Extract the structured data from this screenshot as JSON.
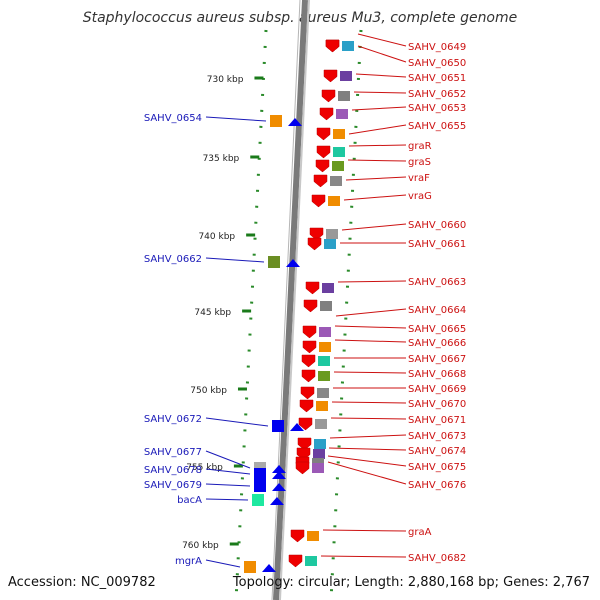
{
  "title": "Staphylococcus aureus subsp. aureus Mu3, complete genome",
  "footer": {
    "accession": "Accession: NC_009782",
    "stats": "Topology: circular; Length: 2,880,168 bp; Genes: 2,767"
  },
  "colors": {
    "backbone": "#808080",
    "tick": "#1a7a1a",
    "forward_label": "#1a1ab8",
    "reverse_label": "#cc1111",
    "forward_arrow": "#0000ee",
    "reverse_arrow": "#ee0000"
  },
  "scale_labels": [
    "730 kbp",
    "735 kbp",
    "740 kbp",
    "745 kbp",
    "750 kbp",
    "755 kbp",
    "760 kbp"
  ],
  "right_genes": [
    "SAHV_0649",
    "SAHV_0650",
    "SAHV_0651",
    "SAHV_0652",
    "SAHV_0653",
    "SAHV_0655",
    "graR",
    "graS",
    "vraF",
    "vraG",
    "SAHV_0660",
    "SAHV_0661",
    "SAHV_0663",
    "SAHV_0664",
    "SAHV_0665",
    "SAHV_0666",
    "SAHV_0667",
    "SAHV_0668",
    "SAHV_0669",
    "SAHV_0670",
    "SAHV_0671",
    "SAHV_0673",
    "SAHV_0674",
    "SAHV_0675",
    "SAHV_0676",
    "graA",
    "SAHV_0682"
  ],
  "left_genes": [
    "SAHV_0654",
    "SAHV_0662",
    "SAHV_0672",
    "SAHV_0677",
    "SAHV_0678",
    "SAHV_0679",
    "bacA",
    "mgrA"
  ]
}
